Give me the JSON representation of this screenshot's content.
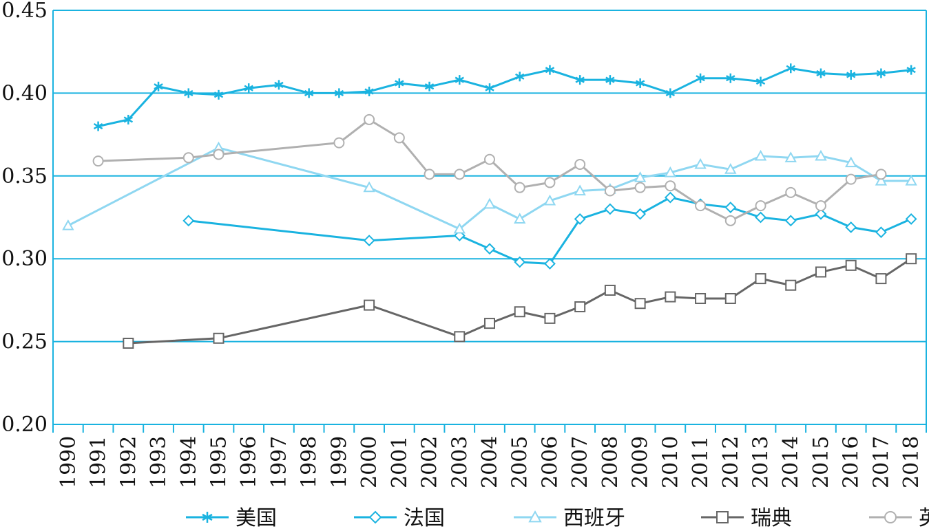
{
  "chart_data": {
    "type": "line",
    "title": "",
    "xlabel": "",
    "ylabel": "",
    "ylim": [
      0.2,
      0.45
    ],
    "yticks": [
      "0.20",
      "0.25",
      "0.30",
      "0.35",
      "0.40",
      "0.45"
    ],
    "categories": [
      "1990",
      "1991",
      "1992",
      "1993",
      "1994",
      "1995",
      "1996",
      "1997",
      "1998",
      "1999",
      "2000",
      "2001",
      "2002",
      "2003",
      "2004",
      "2005",
      "2006",
      "2007",
      "2008",
      "2009",
      "2010",
      "2011",
      "2012",
      "2013",
      "2014",
      "2015",
      "2016",
      "2017",
      "2018"
    ],
    "grid": "horizontal",
    "legend_position": "bottom",
    "series": [
      {
        "name": "美国",
        "color": "#1ab3e0",
        "marker": "asterisk",
        "values": [
          null,
          0.38,
          0.384,
          0.404,
          0.4,
          0.399,
          0.403,
          0.405,
          0.4,
          0.4,
          0.401,
          0.406,
          0.404,
          0.408,
          0.403,
          0.41,
          0.414,
          0.408,
          0.408,
          0.406,
          0.4,
          0.409,
          0.409,
          0.407,
          0.415,
          0.412,
          0.411,
          0.412,
          0.414
        ]
      },
      {
        "name": "法国",
        "color": "#1ab3e0",
        "marker": "diamond",
        "values": [
          null,
          null,
          null,
          null,
          0.323,
          null,
          null,
          null,
          null,
          null,
          0.311,
          null,
          null,
          0.314,
          0.306,
          0.298,
          0.297,
          0.324,
          0.33,
          0.327,
          0.337,
          0.333,
          0.331,
          0.325,
          0.323,
          0.327,
          0.319,
          0.316,
          0.324
        ]
      },
      {
        "name": "西班牙",
        "color": "#8fd7f1",
        "marker": "triangle",
        "values": [
          0.32,
          null,
          null,
          null,
          null,
          0.367,
          null,
          null,
          null,
          null,
          0.343,
          null,
          null,
          0.318,
          0.333,
          0.324,
          0.335,
          0.341,
          0.342,
          0.349,
          0.352,
          0.357,
          0.354,
          0.362,
          0.361,
          0.362,
          0.358,
          0.347,
          0.347
        ]
      },
      {
        "name": "瑞典",
        "color": "#666666",
        "marker": "square",
        "values": [
          null,
          null,
          0.249,
          null,
          null,
          0.252,
          null,
          null,
          null,
          null,
          0.272,
          null,
          null,
          0.253,
          0.261,
          0.268,
          0.264,
          0.271,
          0.281,
          0.273,
          0.277,
          0.276,
          0.276,
          0.288,
          0.284,
          0.292,
          0.296,
          0.288,
          0.3
        ]
      },
      {
        "name": "英国",
        "color": "#b0b0b0",
        "marker": "circle",
        "values": [
          null,
          0.359,
          null,
          null,
          0.361,
          0.363,
          null,
          null,
          null,
          0.37,
          0.384,
          0.373,
          0.351,
          0.351,
          0.36,
          0.343,
          0.346,
          0.357,
          0.341,
          0.343,
          0.344,
          0.332,
          0.323,
          0.332,
          0.34,
          0.332,
          0.348,
          0.351,
          null
        ]
      }
    ]
  }
}
